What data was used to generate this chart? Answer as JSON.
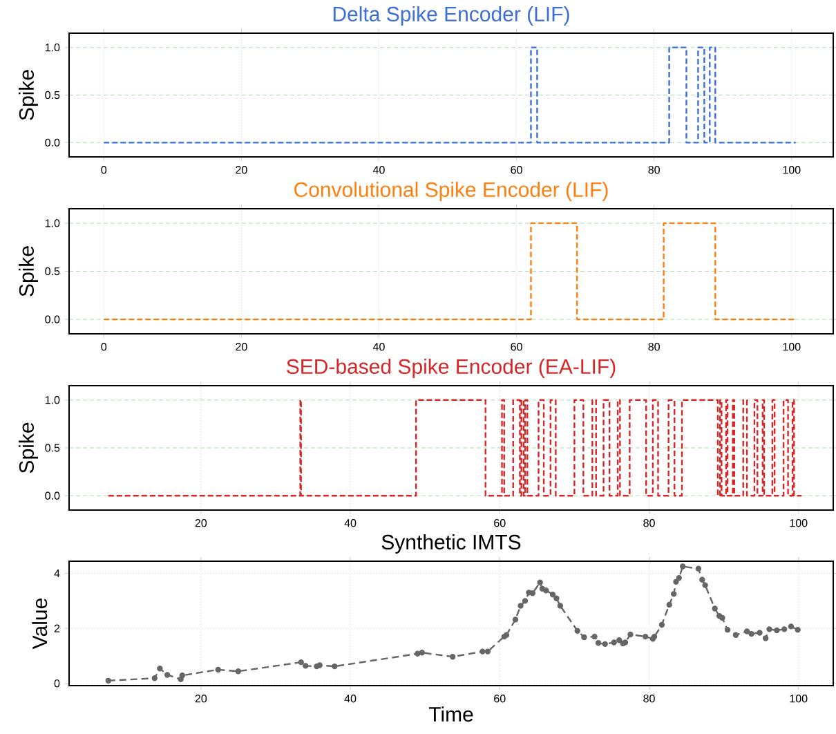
{
  "chart_data": [
    {
      "type": "step",
      "title": "Delta Spike Encoder (LIF)",
      "ylabel": "Spike",
      "xlim": [
        -5.05,
        106.05
      ],
      "ylim": [
        -0.15,
        1.15
      ],
      "xticks": [
        0,
        20,
        40,
        60,
        80,
        100
      ],
      "yticks": [
        {
          "value": 0,
          "label": "0.0"
        },
        {
          "value": 0.5,
          "label": "0.5"
        },
        {
          "value": 1,
          "label": "1.0"
        }
      ],
      "grid": true,
      "line_style": "dashed",
      "marker": "none",
      "series": [
        {
          "color": "#3d6fd9",
          "x": [
            0,
            62.1,
            63.0,
            82.2,
            84.7,
            86.4,
            87.3,
            88.1,
            88.9,
            100.6
          ],
          "values": [
            0,
            1,
            0,
            1,
            0,
            1,
            0,
            1,
            0,
            0
          ]
        }
      ]
    },
    {
      "type": "step",
      "title": "Convolutional Spike Encoder (LIF)",
      "ylabel": "Spike",
      "xlim": [
        -5.05,
        106.05
      ],
      "ylim": [
        -0.15,
        1.15
      ],
      "xticks": [
        0,
        20,
        40,
        60,
        80,
        100
      ],
      "yticks": [
        {
          "value": 0,
          "label": "0.0"
        },
        {
          "value": 0.5,
          "label": "0.5"
        },
        {
          "value": 1,
          "label": "1.0"
        }
      ],
      "grid": true,
      "line_style": "dashed",
      "marker": "none",
      "series": [
        {
          "color": "#ff7f0e",
          "x": [
            0,
            62.1,
            68.8,
            81.4,
            88.9,
            100.6
          ],
          "values": [
            0,
            1,
            0,
            1,
            0,
            0
          ]
        }
      ]
    },
    {
      "type": "step",
      "title": "SED-based Spike Encoder (EA-LIF)",
      "ylabel": "Spike",
      "xlim": [
        2.35,
        104.65
      ],
      "ylim": [
        -0.15,
        1.15
      ],
      "xticks": [
        20,
        40,
        60,
        80,
        100
      ],
      "yticks": [
        {
          "value": 0,
          "label": "0.0"
        },
        {
          "value": 0.5,
          "label": "0.5"
        },
        {
          "value": 1,
          "label": "1.0"
        }
      ],
      "grid": true,
      "line_style": "dashed",
      "marker": "none",
      "series": [
        {
          "color": "#d62728",
          "x": [
            7.6,
            33.3,
            33.4,
            48.8,
            58.1,
            60.3,
            60.6,
            61.8,
            62.7,
            62.9,
            63.2,
            63.4,
            63.7,
            65.2,
            65.9,
            66.8,
            67.5,
            70.0,
            71.2,
            72.4,
            72.9,
            73.9,
            74.7,
            75.8,
            76.1,
            77.4,
            79.6,
            80.5,
            81.2,
            82.6,
            83.4,
            84.4,
            89.2,
            89.5,
            89.7,
            90.3,
            90.5,
            91.2,
            91.4,
            92.6,
            93.1,
            94.1,
            94.5,
            95.2,
            95.4,
            96.5,
            96.8,
            98.0,
            98.6,
            99.2,
            99.4,
            100.4
          ],
          "values": [
            0,
            1,
            0,
            1,
            0,
            1,
            0,
            1,
            0,
            1,
            0,
            1,
            0,
            1,
            0,
            1,
            0,
            1,
            0,
            1,
            0,
            1,
            0,
            1,
            0,
            1,
            0,
            1,
            0,
            1,
            0,
            1,
            0,
            1,
            0,
            1,
            0,
            1,
            0,
            1,
            0,
            1,
            0,
            1,
            0,
            1,
            0,
            1,
            0,
            1,
            0,
            0
          ]
        }
      ]
    },
    {
      "type": "line",
      "title": "Synthetic IMTS",
      "xlabel": "Time",
      "ylabel": "Value",
      "xlim": [
        2.35,
        104.65
      ],
      "ylim": [
        -0.08,
        4.44
      ],
      "xticks": [
        20,
        40,
        60,
        80,
        100
      ],
      "yticks": [
        0,
        2,
        4
      ],
      "grid": true,
      "line_style": "dashed",
      "marker": "circle",
      "series": [
        {
          "color": "#666666",
          "x": [
            7.6,
            13.8,
            14.5,
            15.5,
            17.3,
            17.5,
            22.3,
            25.0,
            33.4,
            34.0,
            35.5,
            35.9,
            37.9,
            49.0,
            49.6,
            53.7,
            57.7,
            58.4,
            60.6,
            60.9,
            62.1,
            62.8,
            63.4,
            63.9,
            64.4,
            65.4,
            65.7,
            66.2,
            67.1,
            67.6,
            68.1,
            70.4,
            71.3,
            72.7,
            73.2,
            74.1,
            75.3,
            76.0,
            76.5,
            76.8,
            77.5,
            79.5,
            80.5,
            80.7,
            81.7,
            82.7,
            83.3,
            83.6,
            84.0,
            84.5,
            86.6,
            87.1,
            87.5,
            88.8,
            89.4,
            89.8,
            90.5,
            91.6,
            93.1,
            93.7,
            94.8,
            95.6,
            96.1,
            97.1,
            98.1,
            99.0,
            99.9
          ],
          "values": [
            0.1,
            0.19,
            0.54,
            0.31,
            0.15,
            0.29,
            0.5,
            0.44,
            0.77,
            0.64,
            0.62,
            0.66,
            0.62,
            1.08,
            1.12,
            0.97,
            1.16,
            1.16,
            1.7,
            1.76,
            2.32,
            2.82,
            3.0,
            3.3,
            3.28,
            3.67,
            3.44,
            3.38,
            3.23,
            3.09,
            2.82,
            1.91,
            1.68,
            1.7,
            1.47,
            1.43,
            1.49,
            1.57,
            1.45,
            1.49,
            1.78,
            1.7,
            1.62,
            1.7,
            2.13,
            2.86,
            3.25,
            3.69,
            3.83,
            4.25,
            4.17,
            3.77,
            3.57,
            2.72,
            2.45,
            2.38,
            1.95,
            1.76,
            1.89,
            1.8,
            1.84,
            1.64,
            1.97,
            1.93,
            1.97,
            2.07,
            1.95
          ]
        }
      ]
    }
  ]
}
